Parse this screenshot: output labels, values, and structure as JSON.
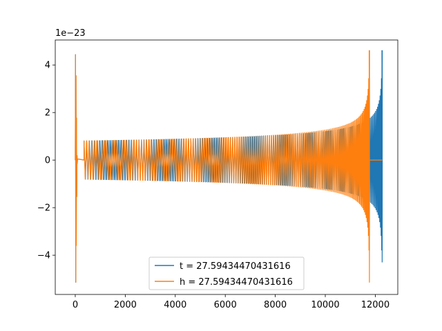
{
  "chart_data": {
    "type": "line",
    "title": "",
    "xlabel": "",
    "ylabel": "",
    "y_offset_label": "1e−23",
    "xlim": [
      -800,
      12900
    ],
    "ylim": [
      -5.65,
      5.05
    ],
    "x_ticks": [
      0,
      2000,
      4000,
      6000,
      8000,
      10000,
      12000
    ],
    "x_tick_labels": [
      "0",
      "2000",
      "4000",
      "6000",
      "8000",
      "10000",
      "12000"
    ],
    "y_ticks": [
      -4,
      -2,
      0,
      2,
      4
    ],
    "y_tick_labels": [
      "−4",
      "−2",
      "0",
      "2",
      "4"
    ],
    "grid": false,
    "legend_position": "lower-center",
    "series": [
      {
        "name": "t = 27.59434470431616",
        "color": "#1f77b4",
        "features": {
          "x_start": 0,
          "spike_x": 0,
          "spike_max": 4.45,
          "spike_min": -5.15,
          "ringdown_end_x": 90,
          "quiet_until_x": 350,
          "steady_amplitude": 0.82,
          "chirp_end_x": 12280,
          "chirp_peak_max": 4.6,
          "chirp_peak_min": -4.3,
          "oscillation_cycles": 150,
          "x_end": 12280
        }
      },
      {
        "name": "h = 27.59434470431616",
        "color": "#ff7f0e",
        "features": {
          "x_start": 0,
          "spike_x": 0,
          "spike_max": 4.45,
          "spike_min": -5.15,
          "ringdown_end_x": 90,
          "quiet_until_x": 350,
          "steady_amplitude": 0.82,
          "chirp_end_x": 11770,
          "chirp_peak_max": 4.6,
          "chirp_peak_min": -5.15,
          "oscillation_cycles": 150,
          "flat_after_x": 11770,
          "x_end": 12280
        }
      }
    ]
  }
}
